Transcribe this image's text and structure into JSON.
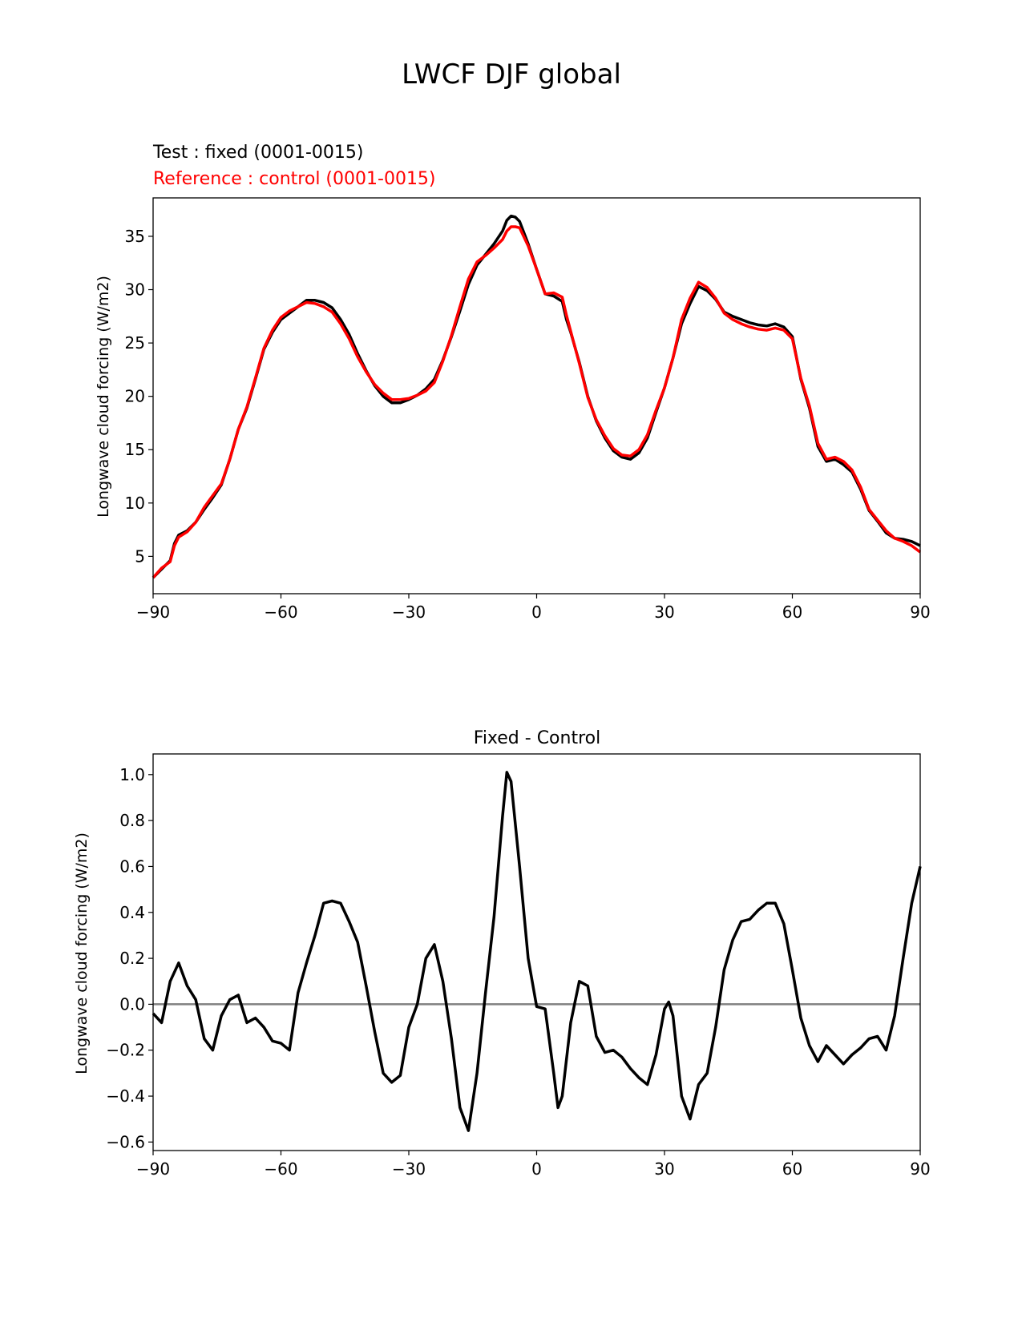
{
  "chart_data": [
    {
      "type": "line",
      "suptitle": "LWCF DJF global",
      "title_test": "Test : fixed (0001-0015)",
      "title_ref": "Reference : control (0001-0015)",
      "xlabel": "",
      "ylabel": "Longwave cloud forcing (W/m2)",
      "xlim": [
        -90,
        90
      ],
      "ylim": [
        1.5,
        38.6
      ],
      "xticks": [
        -90,
        -60,
        -30,
        0,
        30,
        60,
        90
      ],
      "xtick_labels": [
        "−90",
        "−60",
        "−30",
        "0",
        "30",
        "60",
        "90"
      ],
      "yticks": [
        5,
        10,
        15,
        20,
        25,
        30,
        35
      ],
      "ytick_labels": [
        "5",
        "10",
        "15",
        "20",
        "25",
        "30",
        "35"
      ],
      "x": [
        -90,
        -88,
        -86,
        -85,
        -84,
        -82,
        -80,
        -78,
        -76,
        -74,
        -72,
        -70,
        -68,
        -66,
        -64,
        -62,
        -60,
        -58,
        -56,
        -54,
        -52,
        -50,
        -48,
        -46,
        -44,
        -42,
        -40,
        -38,
        -36,
        -34,
        -32,
        -30,
        -28,
        -26,
        -24,
        -22,
        -20,
        -18,
        -16,
        -14,
        -12,
        -10,
        -8,
        -7,
        -6,
        -5,
        -4,
        -2,
        0,
        2,
        4,
        6,
        7,
        8,
        10,
        12,
        14,
        16,
        18,
        20,
        22,
        24,
        26,
        28,
        30,
        32,
        34,
        36,
        38,
        40,
        42,
        44,
        46,
        48,
        50,
        52,
        54,
        56,
        58,
        60,
        62,
        64,
        66,
        68,
        70,
        72,
        74,
        76,
        78,
        80,
        82,
        84,
        86,
        88,
        90
      ],
      "series": [
        {
          "name": "Test",
          "color": "#000000",
          "values": [
            3.0,
            3.8,
            4.6,
            6.2,
            7.0,
            7.4,
            8.2,
            9.4,
            10.5,
            11.7,
            14.1,
            16.9,
            18.9,
            21.6,
            24.4,
            26.0,
            27.2,
            27.8,
            28.4,
            29.0,
            29.0,
            28.8,
            28.3,
            27.2,
            25.8,
            24.0,
            22.4,
            21.0,
            20.0,
            19.4,
            19.4,
            19.7,
            20.1,
            20.7,
            21.6,
            23.4,
            25.6,
            28.0,
            30.5,
            32.3,
            33.3,
            34.3,
            35.5,
            36.5,
            36.9,
            36.8,
            36.4,
            34.3,
            31.9,
            29.6,
            29.4,
            28.9,
            27.2,
            26.0,
            23.2,
            20.0,
            17.7,
            16.1,
            14.9,
            14.3,
            14.1,
            14.7,
            16.1,
            18.5,
            20.8,
            23.6,
            26.8,
            28.7,
            30.3,
            29.9,
            29.1,
            27.9,
            27.5,
            27.2,
            26.9,
            26.7,
            26.6,
            26.8,
            26.5,
            25.6,
            21.6,
            18.9,
            15.3,
            13.9,
            14.1,
            13.6,
            12.9,
            11.3,
            9.3,
            8.3,
            7.2,
            6.7,
            6.6,
            6.4,
            6.0
          ]
        },
        {
          "name": "Reference",
          "color": "#ff0000",
          "values": [
            3.0,
            3.9,
            4.5,
            6.0,
            6.8,
            7.3,
            8.2,
            9.6,
            10.7,
            11.8,
            14.1,
            16.9,
            19.0,
            21.7,
            24.5,
            26.2,
            27.4,
            28.0,
            28.4,
            28.8,
            28.7,
            28.4,
            27.9,
            26.8,
            25.4,
            23.7,
            22.3,
            21.1,
            20.3,
            19.7,
            19.7,
            19.8,
            20.1,
            20.5,
            21.3,
            23.3,
            25.7,
            28.4,
            31.0,
            32.6,
            33.2,
            33.9,
            34.7,
            35.5,
            35.9,
            35.9,
            35.8,
            34.1,
            31.9,
            29.6,
            29.7,
            29.3,
            27.6,
            26.1,
            23.1,
            19.9,
            17.8,
            16.3,
            15.1,
            14.5,
            14.4,
            15.0,
            16.4,
            18.7,
            20.8,
            23.6,
            27.2,
            29.2,
            30.7,
            30.2,
            29.2,
            27.8,
            27.2,
            26.8,
            26.5,
            26.3,
            26.2,
            26.4,
            26.2,
            25.4,
            21.7,
            19.1,
            15.6,
            14.1,
            14.3,
            13.9,
            13.1,
            11.5,
            9.4,
            8.4,
            7.4,
            6.7,
            6.4,
            6.0,
            5.4
          ]
        }
      ]
    },
    {
      "type": "line",
      "title": "Fixed - Control",
      "xlabel": "",
      "ylabel": "Longwave cloud forcing (W/m2)",
      "xlim": [
        -90,
        90
      ],
      "ylim": [
        -0.637,
        1.09
      ],
      "xticks": [
        -90,
        -60,
        -30,
        0,
        30,
        60,
        90
      ],
      "xtick_labels": [
        "−90",
        "−60",
        "−30",
        "0",
        "30",
        "60",
        "90"
      ],
      "yticks": [
        -0.6,
        -0.4,
        -0.2,
        0.0,
        0.2,
        0.4,
        0.6,
        0.8,
        1.0
      ],
      "ytick_labels": [
        "−0.6",
        "−0.4",
        "−0.2",
        "0.0",
        "0.2",
        "0.4",
        "0.6",
        "0.8",
        "1.0"
      ],
      "reference_line": {
        "y": 0,
        "color": "#808080"
      },
      "x": [
        -90,
        -88,
        -86,
        -84,
        -82,
        -80,
        -78,
        -76,
        -74,
        -72,
        -70,
        -68,
        -66,
        -64,
        -62,
        -60,
        -58,
        -56,
        -54,
        -52,
        -50,
        -48,
        -46,
        -44,
        -42,
        -40,
        -38,
        -36,
        -34,
        -32,
        -30,
        -28,
        -26,
        -24,
        -22,
        -20,
        -18,
        -16,
        -14,
        -12,
        -10,
        -8,
        -7,
        -6,
        -4,
        -2,
        0,
        2,
        4,
        5,
        6,
        8,
        10,
        12,
        14,
        16,
        18,
        20,
        22,
        24,
        26,
        28,
        30,
        31,
        32,
        34,
        36,
        38,
        40,
        42,
        44,
        46,
        48,
        50,
        52,
        54,
        56,
        58,
        60,
        62,
        64,
        66,
        68,
        70,
        72,
        74,
        76,
        78,
        80,
        82,
        84,
        86,
        88,
        90
      ],
      "series": [
        {
          "name": "Fixed - Control",
          "color": "#000000",
          "values": [
            -0.04,
            -0.08,
            0.1,
            0.18,
            0.08,
            0.02,
            -0.15,
            -0.2,
            -0.05,
            0.02,
            0.04,
            -0.08,
            -0.06,
            -0.1,
            -0.16,
            -0.17,
            -0.2,
            0.05,
            0.18,
            0.3,
            0.44,
            0.45,
            0.44,
            0.36,
            0.27,
            0.08,
            -0.12,
            -0.3,
            -0.34,
            -0.31,
            -0.1,
            0.0,
            0.2,
            0.26,
            0.1,
            -0.15,
            -0.45,
            -0.55,
            -0.3,
            0.05,
            0.38,
            0.82,
            1.01,
            0.97,
            0.6,
            0.2,
            -0.01,
            -0.02,
            -0.3,
            -0.45,
            -0.4,
            -0.08,
            0.1,
            0.08,
            -0.14,
            -0.21,
            -0.2,
            -0.23,
            -0.28,
            -0.32,
            -0.35,
            -0.22,
            -0.02,
            0.01,
            -0.05,
            -0.4,
            -0.5,
            -0.35,
            -0.3,
            -0.1,
            0.15,
            0.28,
            0.36,
            0.37,
            0.41,
            0.44,
            0.44,
            0.35,
            0.15,
            -0.06,
            -0.18,
            -0.25,
            -0.18,
            -0.22,
            -0.26,
            -0.22,
            -0.19,
            -0.15,
            -0.14,
            -0.2,
            -0.05,
            0.2,
            0.44,
            0.6
          ]
        }
      ]
    }
  ]
}
